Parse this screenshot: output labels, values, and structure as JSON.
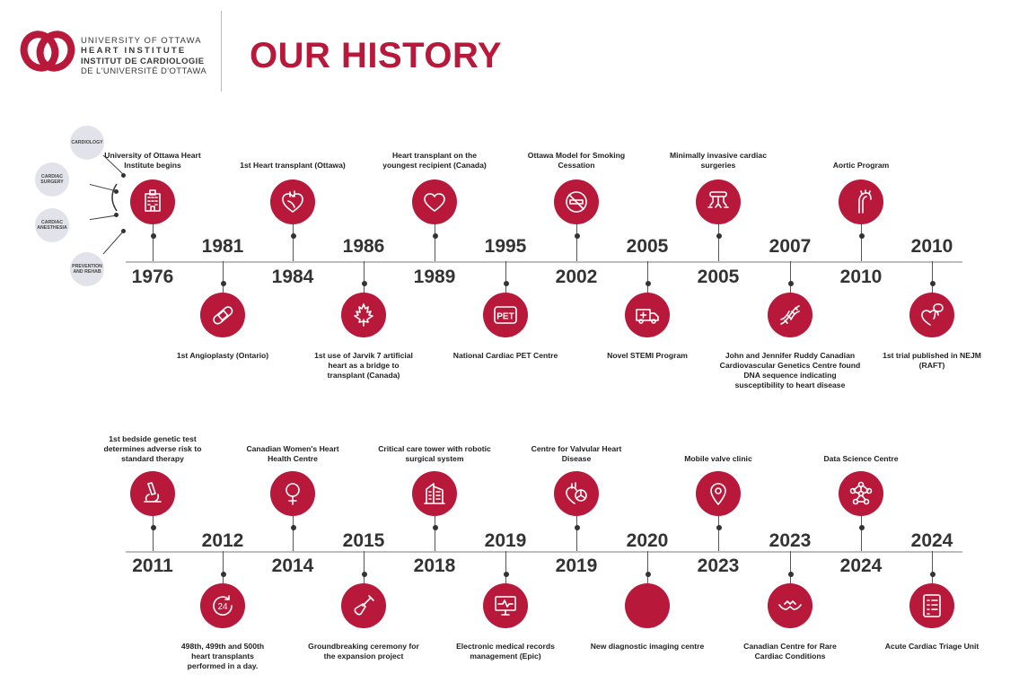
{
  "logo": {
    "line1": "UNIVERSITY OF OTTAWA",
    "line2": "HEART INSTITUTE",
    "line3": "INSTITUT DE CARDIOLOGIE",
    "line4": "DE L'UNIVERSITÉ D'OTTAWA",
    "color": "#b8183a"
  },
  "page_title": "OUR HISTORY",
  "categories": [
    "CARDIOLOGY",
    "CARDIAC SURGERY",
    "CARDIAC ANESTHESIA",
    "PREVENTION AND REHAB"
  ],
  "timeline_1": [
    {
      "year": "1976",
      "label": "University of Ottawa Heart Institute begins",
      "icon": "hospital-icon"
    },
    {
      "year": "1981",
      "label": "1st Angioplasty (Ontario)",
      "icon": "bandage-icon"
    },
    {
      "year": "1984",
      "label": "1st Heart transplant (Ottawa)",
      "icon": "heart-anatomy-icon"
    },
    {
      "year": "1986",
      "label": "1st use of Jarvik 7 artificial heart as a bridge to transplant (Canada)",
      "icon": "maple-leaf-icon"
    },
    {
      "year": "1989",
      "label": "Heart transplant on the youngest recipient (Canada)",
      "icon": "heart-icon"
    },
    {
      "year": "1995",
      "label": "National Cardiac PET Centre",
      "icon": "pet-icon"
    },
    {
      "year": "2002",
      "label": "Ottawa Model for Smoking Cessation",
      "icon": "no-smoking-icon"
    },
    {
      "year": "2005",
      "label": "Novel STEMI Program",
      "icon": "ambulance-icon"
    },
    {
      "year": "2005",
      "label": "Minimally invasive cardiac surgeries",
      "icon": "robotic-arms-icon"
    },
    {
      "year": "2007",
      "label": "John and Jennifer Ruddy Canadian Cardiovascular Genetics Centre found DNA sequence indicating susceptibility to heart disease",
      "icon": "dna-icon"
    },
    {
      "year": "2010",
      "label": "Aortic Program",
      "icon": "aorta-icon"
    },
    {
      "year": "2010",
      "label": "1st trial published in NEJM (RAFT)",
      "icon": "device-heart-icon"
    }
  ],
  "timeline_2": [
    {
      "year": "2011",
      "label": "1st bedside genetic test determines adverse risk to standard therapy",
      "icon": "microscope-icon"
    },
    {
      "year": "2012",
      "label": "498th, 499th and 500th heart transplants performed in a day.",
      "icon": "24-hours-icon",
      "icon_text": "24"
    },
    {
      "year": "2014",
      "label": "Canadian Women's Heart Health Centre",
      "icon": "female-symbol-icon"
    },
    {
      "year": "2015",
      "label": "Groundbreaking ceremony for the expansion project",
      "icon": "shovel-icon"
    },
    {
      "year": "2018",
      "label": "Critical care tower with robotic surgical system",
      "icon": "building-icon"
    },
    {
      "year": "2019",
      "label": "Electronic medical records management (Epic)",
      "icon": "monitor-icon"
    },
    {
      "year": "2019",
      "label": "Centre for Valvular Heart Disease",
      "icon": "heart-valve-icon"
    },
    {
      "year": "2020",
      "label": "New diagnostic imaging centre",
      "icon": "scanner-icon"
    },
    {
      "year": "2023",
      "label": "Mobile valve clinic",
      "icon": "location-pin-icon"
    },
    {
      "year": "2023",
      "label": "Canadian Centre for Rare Cardiac Conditions",
      "icon": "hands-heart-icon"
    },
    {
      "year": "2024",
      "label": "Data Science Centre",
      "icon": "network-icon"
    },
    {
      "year": "2024",
      "label": "Acute Cardiac Triage Unit",
      "icon": "checklist-icon"
    }
  ]
}
